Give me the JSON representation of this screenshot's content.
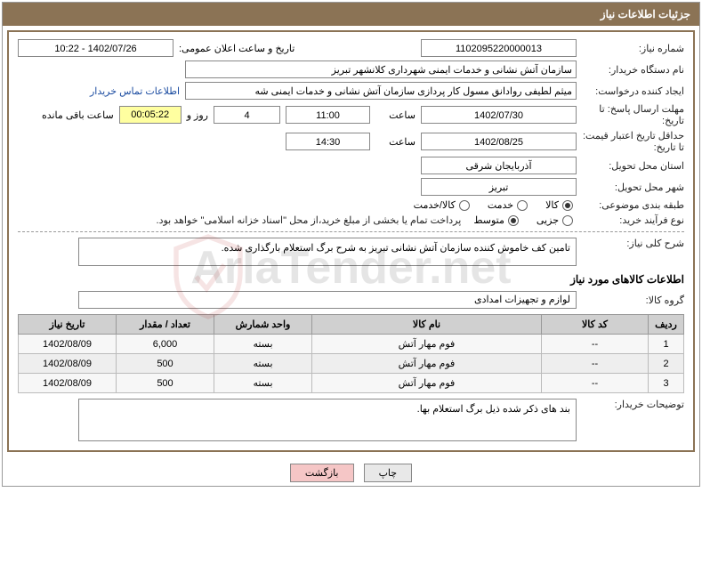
{
  "header": {
    "title": "جزئیات اطلاعات نیاز"
  },
  "form": {
    "req_no_label": "شماره نیاز:",
    "req_no": "1102095220000013",
    "announce_label": "تاریخ و ساعت اعلان عمومی:",
    "announce_val": "1402/07/26 - 10:22",
    "buyer_label": "نام دستگاه خریدار:",
    "buyer_val": "سازمان آتش نشانی و خدمات ایمنی شهرداری کلانشهر تبریز",
    "creator_label": "ایجاد کننده درخواست:",
    "creator_val": "میثم لطیفی روادانق مسول کار پردازی سازمان آتش نشانی و خدمات ایمنی شه",
    "contact_link": "اطلاعات تماس خریدار",
    "deadline_label": "مهلت ارسال پاسخ: تا تاریخ:",
    "deadline_date": "1402/07/30",
    "time_lbl": "ساعت",
    "deadline_time": "11:00",
    "remain_n": "4",
    "remain_days": "روز و",
    "remain_time": "00:05:22",
    "remain_txt": "ساعت باقی مانده",
    "valid_label": "حداقل تاریخ اعتبار قیمت: تا تاریخ:",
    "valid_date": "1402/08/25",
    "valid_time": "14:30",
    "province_label": "استان محل تحویل:",
    "province_val": "آذربایجان شرقی",
    "city_label": "شهر محل تحویل:",
    "city_val": "تبریز",
    "class_label": "طبقه بندی موضوعی:",
    "r1": "کالا",
    "r2": "خدمت",
    "r3": "کالا/خدمت",
    "proc_label": "نوع فرآیند خرید:",
    "p1": "جزیی",
    "p2": "متوسط",
    "proc_note": "پرداخت تمام یا بخشی از مبلغ خرید،از محل \"اسناد خزانه اسلامی\" خواهد بود.",
    "desc_label": "شرح کلی نیاز:",
    "desc_val": "تامین کف خاموش کننده سازمان آتش نشانی تبریز به شرح برگ استعلام بارگذاری شده.",
    "section_goods": "اطلاعات کالاهای مورد نیاز",
    "group_label": "گروه کالا:",
    "group_val": "لوازم و تجهیزات امدادی",
    "comments_label": "توضیحات خریدار:",
    "comments_val": "بند های ذکر شده ذیل برگ استعلام بها."
  },
  "table": {
    "cols": {
      "n": "ردیف",
      "code": "کد کالا",
      "name": "نام کالا",
      "unit": "واحد شمارش",
      "qty": "تعداد / مقدار",
      "date": "تاریخ نیاز"
    },
    "rows": [
      {
        "n": "1",
        "code": "--",
        "name": "فوم مهار آتش",
        "unit": "بسته",
        "qty": "6,000",
        "date": "1402/08/09"
      },
      {
        "n": "2",
        "code": "--",
        "name": "فوم مهار آتش",
        "unit": "بسته",
        "qty": "500",
        "date": "1402/08/09"
      },
      {
        "n": "3",
        "code": "--",
        "name": "فوم مهار آتش",
        "unit": "بسته",
        "qty": "500",
        "date": "1402/08/09"
      }
    ]
  },
  "buttons": {
    "print": "چاپ",
    "back": "بازگشت"
  },
  "watermark": "ArlaTender.net"
}
